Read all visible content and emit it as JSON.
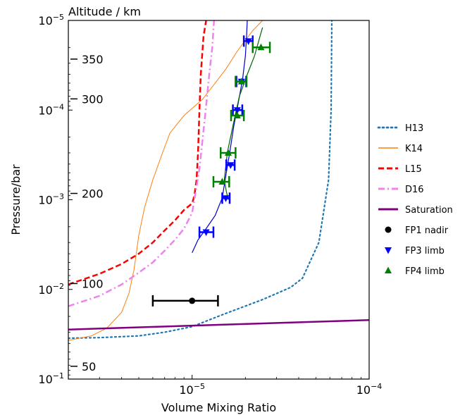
{
  "chart_data": {
    "type": "line",
    "xlabel": "Volume Mixing Ratio",
    "ylabel": "Pressure/bar",
    "secondary_axis_label": "Altitude / km",
    "x_scale": "log",
    "y_scale": "log",
    "y_inverted": true,
    "xlim": [
      2e-06,
      0.0001
    ],
    "ylim": [
      0.1,
      1e-05
    ],
    "x_ticks": [
      {
        "value": 1e-05,
        "label": "10^-5"
      },
      {
        "value": 0.0001,
        "label": "10^-4"
      }
    ],
    "y_ticks": [
      {
        "value": 1e-05,
        "label": "10^-5"
      },
      {
        "value": 0.0001,
        "label": "10^-4"
      },
      {
        "value": 0.001,
        "label": "10^-3"
      },
      {
        "value": 0.01,
        "label": "10^-2"
      },
      {
        "value": 0.1,
        "label": "10^-1"
      }
    ],
    "altitude_ticks": [
      {
        "pressure": 2.7e-05,
        "label": "350"
      },
      {
        "pressure": 7.5e-05,
        "label": "300"
      },
      {
        "pressure": 0.00085,
        "label": "200"
      },
      {
        "pressure": 0.0086,
        "label": "100"
      },
      {
        "pressure": 0.072,
        "label": "50"
      }
    ],
    "legend_position": "right, outside plot",
    "series": [
      {
        "name": "H13",
        "style": "dotted",
        "color": "#1f77b4",
        "width": 2.2,
        "points": [
          [
            2e-06,
            0.035
          ],
          [
            3e-06,
            0.0345
          ],
          [
            5e-06,
            0.033
          ],
          [
            7e-06,
            0.03
          ],
          [
            1e-05,
            0.026
          ],
          [
            1.5e-05,
            0.019
          ],
          [
            2.5e-05,
            0.013
          ],
          [
            3.6e-05,
            0.0095
          ],
          [
            4.2e-05,
            0.0075
          ],
          [
            5.2e-05,
            0.003
          ],
          [
            5.9e-05,
            0.0006
          ],
          [
            6.1e-05,
            0.0001
          ],
          [
            6.15e-05,
            1.3e-05
          ],
          [
            6.15e-05,
            1e-05
          ]
        ]
      },
      {
        "name": "K14",
        "style": "solid",
        "color": "#ff7f0e",
        "width": 1,
        "points": [
          [
            2e-06,
            0.037
          ],
          [
            2.7e-06,
            0.033
          ],
          [
            3.3e-06,
            0.027
          ],
          [
            4e-06,
            0.018
          ],
          [
            4.4e-06,
            0.011
          ],
          [
            4.7e-06,
            0.006
          ],
          [
            5e-06,
            0.0025
          ],
          [
            5.4e-06,
            0.0012
          ],
          [
            6e-06,
            0.0006
          ],
          [
            6.8e-06,
            0.0003
          ],
          [
            7.5e-06,
            0.00018
          ],
          [
            9e-06,
            0.000115
          ],
          [
            1.15e-05,
            7.5e-05
          ],
          [
            1.35e-05,
            5e-05
          ],
          [
            1.55e-05,
            3.5e-05
          ],
          [
            1.8e-05,
            2.2e-05
          ],
          [
            2.2e-05,
            1.3e-05
          ],
          [
            2.5e-05,
            1e-05
          ]
        ]
      },
      {
        "name": "L15",
        "style": "dashed",
        "color": "#ff0000",
        "width": 2.5,
        "points": [
          [
            2e-06,
            0.0088
          ],
          [
            3e-06,
            0.0067
          ],
          [
            4e-06,
            0.0052
          ],
          [
            5e-06,
            0.004
          ],
          [
            6e-06,
            0.003
          ],
          [
            7e-06,
            0.0022
          ],
          [
            8e-06,
            0.0017
          ],
          [
            9e-06,
            0.0013
          ],
          [
            1e-05,
            0.0011
          ],
          [
            1.03e-05,
            0.0009
          ],
          [
            1.06e-05,
            0.0006
          ],
          [
            1.08e-05,
            0.0003
          ],
          [
            1.1e-05,
            0.0001
          ],
          [
            1.12e-05,
            4e-05
          ],
          [
            1.16e-05,
            1.5e-05
          ],
          [
            1.2e-05,
            1e-05
          ]
        ]
      },
      {
        "name": "D16",
        "style": "dashdot",
        "color": "#ee82ee",
        "width": 2.5,
        "points": [
          [
            2e-06,
            0.0154
          ],
          [
            3e-06,
            0.0118
          ],
          [
            4e-06,
            0.0088
          ],
          [
            5e-06,
            0.0065
          ],
          [
            6e-06,
            0.005
          ],
          [
            7e-06,
            0.0037
          ],
          [
            8e-06,
            0.0028
          ],
          [
            9e-06,
            0.0021
          ],
          [
            1e-05,
            0.0014
          ],
          [
            1.05e-05,
            0.0008
          ],
          [
            1.1e-05,
            0.00045
          ],
          [
            1.15e-05,
            0.0002
          ],
          [
            1.2e-05,
            9e-05
          ],
          [
            1.25e-05,
            4e-05
          ],
          [
            1.3e-05,
            2e-05
          ],
          [
            1.33e-05,
            1e-05
          ]
        ]
      },
      {
        "name": "Saturation",
        "style": "solid",
        "color": "#800080",
        "width": 2.5,
        "points": [
          [
            2e-06,
            0.028
          ],
          [
            0.0001,
            0.022
          ]
        ]
      }
    ],
    "fit_lines": [
      {
        "color": "#0000cc",
        "width": 1.2,
        "points": [
          [
            1e-05,
            0.0039
          ],
          [
            1.08e-05,
            0.0028
          ],
          [
            1.2e-05,
            0.0021
          ],
          [
            1.35e-05,
            0.0015
          ],
          [
            1.48e-05,
            0.00095
          ],
          [
            1.56e-05,
            0.0005
          ],
          [
            1.63e-05,
            0.0003
          ],
          [
            1.72e-05,
            0.00015
          ],
          [
            1.83e-05,
            8e-05
          ],
          [
            1.93e-05,
            4.5e-05
          ],
          [
            2e-05,
            2.5e-05
          ],
          [
            2.03e-05,
            1.5e-05
          ],
          [
            2.05e-05,
            1e-05
          ]
        ]
      },
      {
        "color": "#006400",
        "width": 1.2,
        "points": [
          [
            1.6e-05,
            0.001
          ],
          [
            1.56e-05,
            0.0008
          ],
          [
            1.52e-05,
            0.0006
          ],
          [
            1.58e-05,
            0.0003
          ],
          [
            1.7e-05,
            0.00015
          ],
          [
            1.85e-05,
            7e-05
          ],
          [
            2.05e-05,
            4e-05
          ],
          [
            2.25e-05,
            2.5e-05
          ],
          [
            2.42e-05,
            1.5e-05
          ],
          [
            2.5e-05,
            1.2e-05
          ]
        ]
      }
    ],
    "markers": [
      {
        "name": "FP1 nadir",
        "marker": "circle",
        "color": "#000000",
        "points": [
          {
            "x": 1e-05,
            "y": 0.0134,
            "xerr": [
              6e-06,
              1.4e-05
            ]
          }
        ]
      },
      {
        "name": "FP3 limb",
        "marker": "triangle-down",
        "color": "#0000ff",
        "points": [
          {
            "x": 1.2e-05,
            "y": 0.0023,
            "xerr": [
              1.1e-05,
              1.32e-05
            ]
          },
          {
            "x": 1.55e-05,
            "y": 0.00096,
            "xerr": [
              1.48e-05,
              1.63e-05
            ]
          },
          {
            "x": 1.65e-05,
            "y": 0.00041,
            "xerr": [
              1.56e-05,
              1.74e-05
            ]
          },
          {
            "x": 1.8e-05,
            "y": 0.0001,
            "xerr": [
              1.7e-05,
              1.92e-05
            ]
          },
          {
            "x": 1.9e-05,
            "y": 4.8e-05,
            "xerr": [
              1.78e-05,
              2.02e-05
            ]
          },
          {
            "x": 2.08e-05,
            "y": 1.7e-05,
            "xerr": [
              1.96e-05,
              2.2e-05
            ]
          }
        ]
      },
      {
        "name": "FP4 limb",
        "marker": "triangle-up",
        "color": "#008000",
        "points": [
          {
            "x": 1.48e-05,
            "y": 0.00063,
            "xerr": [
              1.32e-05,
              1.62e-05
            ]
          },
          {
            "x": 1.6e-05,
            "y": 0.0003,
            "xerr": [
              1.45e-05,
              1.76e-05
            ]
          },
          {
            "x": 1.8e-05,
            "y": 0.000115,
            "xerr": [
              1.66e-05,
              1.96e-05
            ]
          },
          {
            "x": 1.9e-05,
            "y": 4.8e-05,
            "xerr": [
              1.76e-05,
              2.03e-05
            ]
          },
          {
            "x": 2.45e-05,
            "y": 2e-05,
            "xerr": [
              2.2e-05,
              2.75e-05
            ]
          }
        ]
      }
    ]
  }
}
